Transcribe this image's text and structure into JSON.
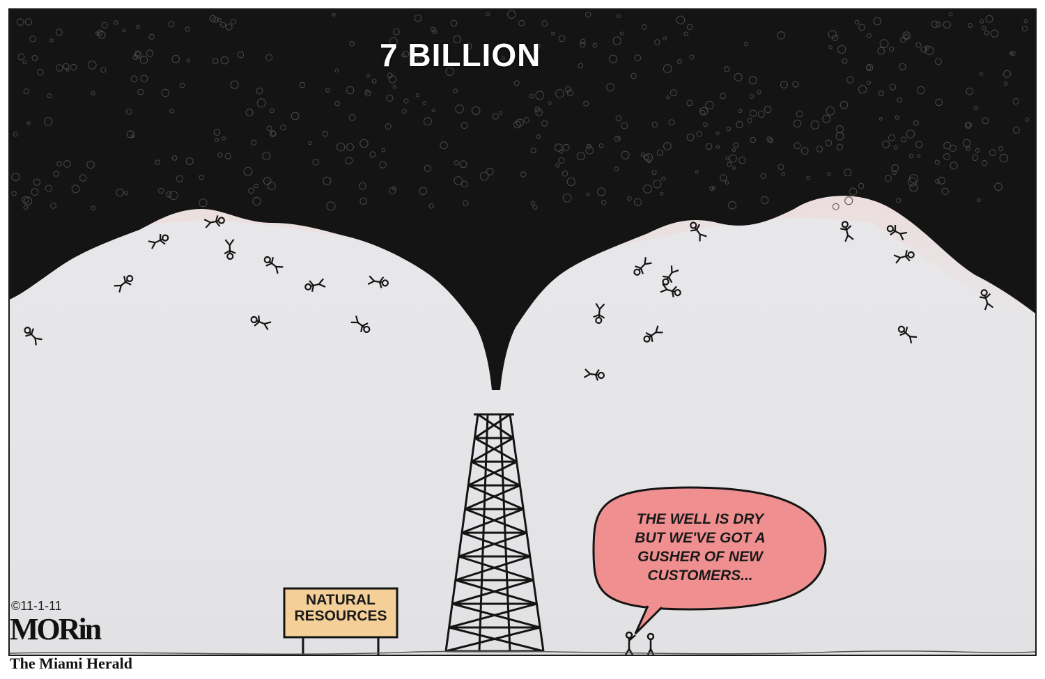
{
  "headline": "7 BILLION",
  "sign": {
    "line1": "NATURAL",
    "line2": "RESOURCES"
  },
  "speech_bubble": {
    "lines": [
      "THE WELL IS DRY",
      "BUT WE'VE GOT A",
      "GUSHER OF NEW",
      "CUSTOMERS..."
    ]
  },
  "date": "©11-1-11",
  "signature": "MORin",
  "publisher": "The Miami Herald",
  "colors": {
    "crowd": "#141414",
    "haze": "#f3c9c4",
    "sky": "#e7e7e9",
    "bubble": "#f08f8f",
    "sign": "#f4cf98"
  }
}
